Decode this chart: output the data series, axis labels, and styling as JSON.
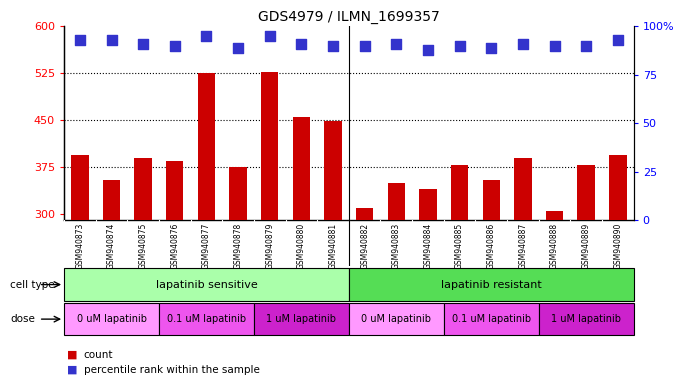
{
  "title": "GDS4979 / ILMN_1699357",
  "samples": [
    "GSM940873",
    "GSM940874",
    "GSM940875",
    "GSM940876",
    "GSM940877",
    "GSM940878",
    "GSM940879",
    "GSM940880",
    "GSM940881",
    "GSM940882",
    "GSM940883",
    "GSM940884",
    "GSM940885",
    "GSM940886",
    "GSM940887",
    "GSM940888",
    "GSM940889",
    "GSM940890"
  ],
  "counts": [
    395,
    355,
    390,
    385,
    525,
    375,
    527,
    455,
    448,
    310,
    350,
    340,
    378,
    355,
    390,
    305,
    378,
    395
  ],
  "percentile_ranks": [
    93,
    93,
    91,
    90,
    95,
    89,
    95,
    91,
    90,
    90,
    91,
    88,
    90,
    89,
    91,
    90,
    90,
    93
  ],
  "bar_color": "#cc0000",
  "dot_color": "#3333cc",
  "ylim_left": [
    290,
    600
  ],
  "ylim_right": [
    0,
    100
  ],
  "yticks_left": [
    300,
    375,
    450,
    525,
    600
  ],
  "yticks_right": [
    0,
    25,
    50,
    75,
    100
  ],
  "hlines": [
    375,
    450,
    525
  ],
  "cell_type_groups": [
    {
      "label": "lapatinib sensitive",
      "start": 0,
      "end": 9,
      "color": "#aaffaa"
    },
    {
      "label": "lapatinib resistant",
      "start": 9,
      "end": 18,
      "color": "#55dd55"
    }
  ],
  "dose_groups": [
    {
      "label": "0 uM lapatinib",
      "start": 0,
      "end": 3,
      "color": "#ff99ff"
    },
    {
      "label": "0.1 uM lapatinib",
      "start": 3,
      "end": 6,
      "color": "#ee55ee"
    },
    {
      "label": "1 uM lapatinib",
      "start": 6,
      "end": 9,
      "color": "#cc22cc"
    },
    {
      "label": "0 uM lapatinib",
      "start": 9,
      "end": 12,
      "color": "#ff99ff"
    },
    {
      "label": "0.1 uM lapatinib",
      "start": 12,
      "end": 15,
      "color": "#ee55ee"
    },
    {
      "label": "1 uM lapatinib",
      "start": 15,
      "end": 18,
      "color": "#cc22cc"
    }
  ],
  "legend_count_label": "count",
  "legend_pct_label": "percentile rank within the sample",
  "cell_type_label": "cell type",
  "dose_label": "dose",
  "bar_width": 0.55,
  "dot_size": 50,
  "background_color": "#ffffff",
  "plot_bg_color": "#ffffff",
  "xtick_bg_color": "#cccccc",
  "right_axis_top_label": "100%"
}
